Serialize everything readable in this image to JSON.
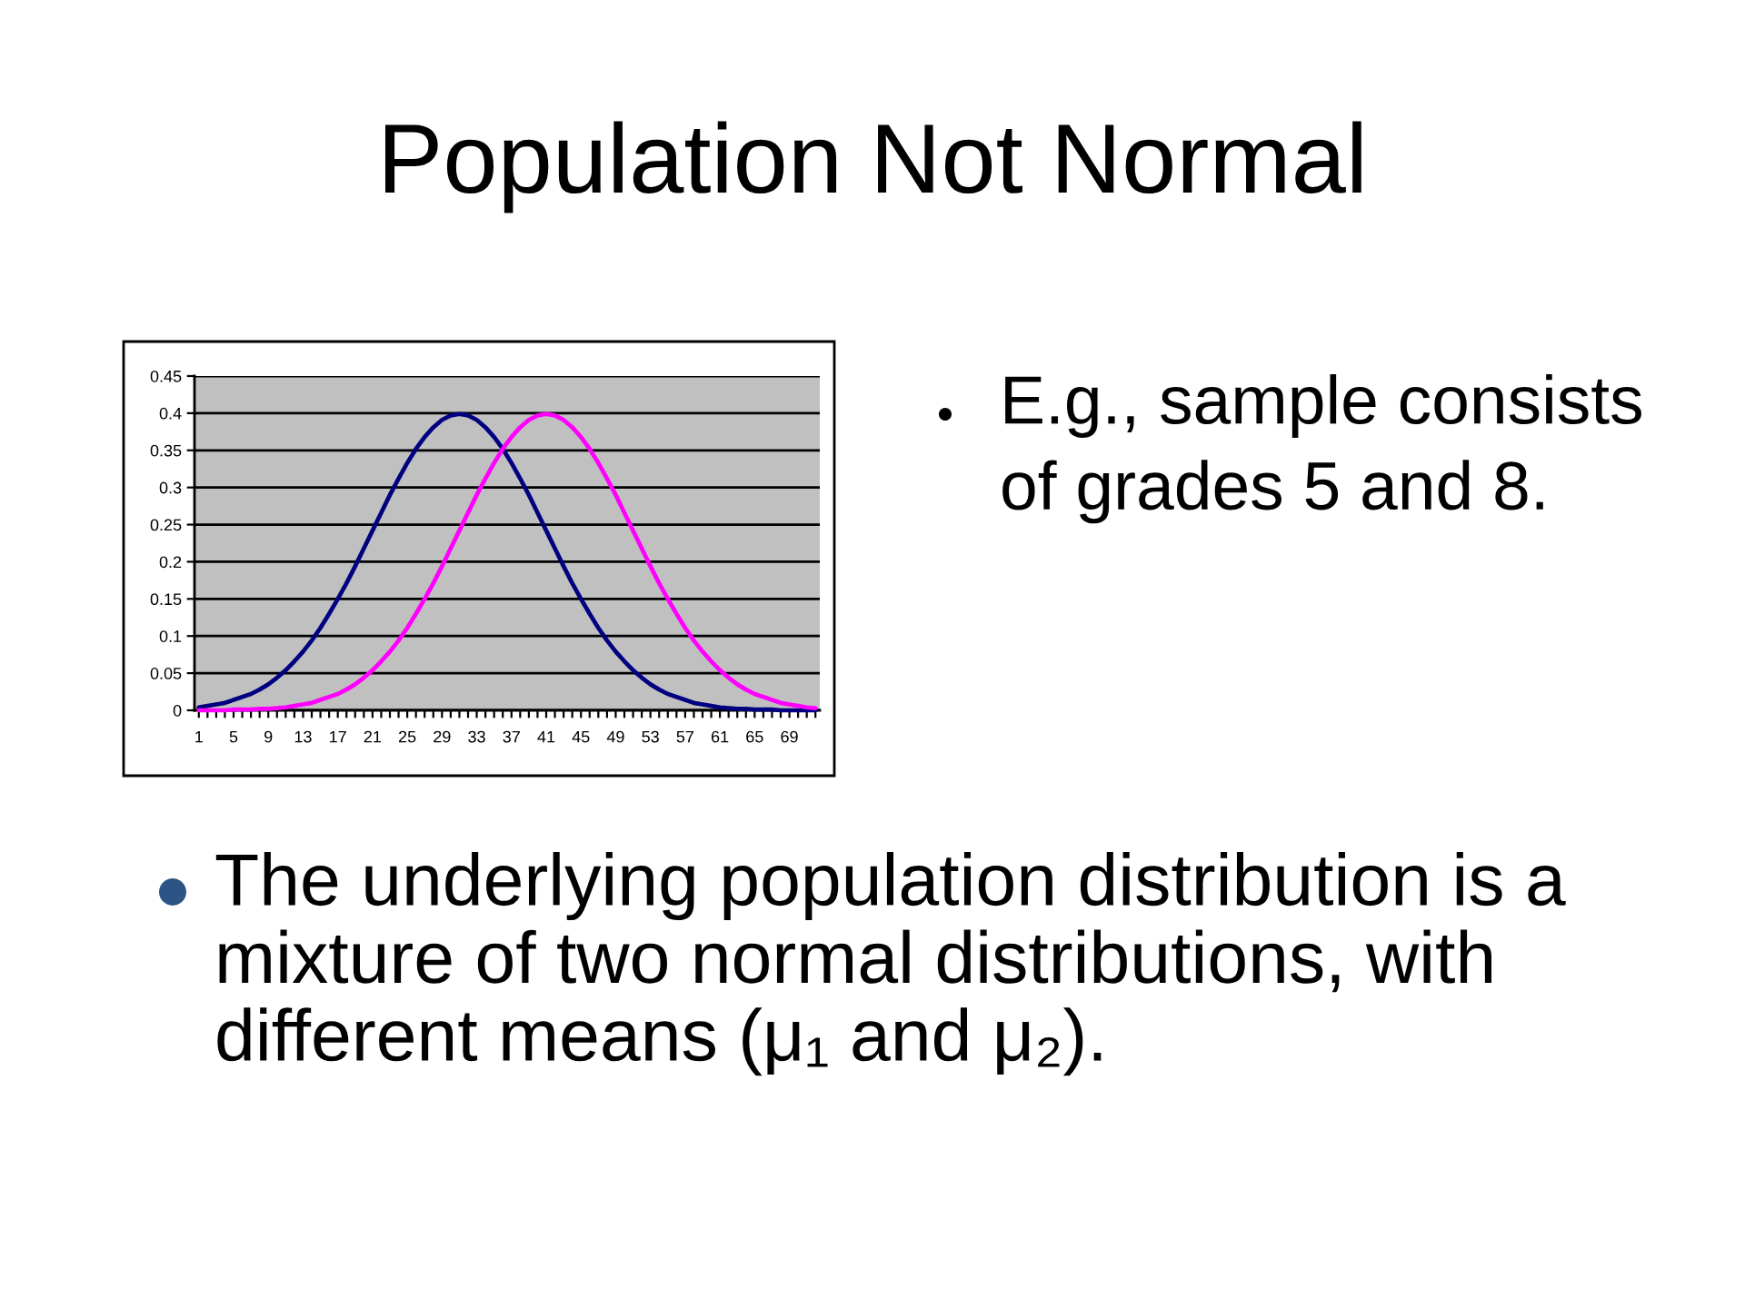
{
  "chart_data": {
    "type": "line",
    "title": "Population Not Normal",
    "annotations": [
      "E.g., sample consists of grades 5 and 8.",
      "The underlying population distribution is a mixture of two normal distributions, with different means (μ₁ and μ₂)."
    ],
    "categories": [
      "1",
      null,
      null,
      null,
      "5",
      null,
      null,
      null,
      "9",
      null,
      null,
      null,
      "13",
      null,
      null,
      null,
      "17",
      null,
      null,
      null,
      "21",
      null,
      null,
      null,
      "25",
      null,
      null,
      null,
      "29",
      null,
      null,
      null,
      "33",
      null,
      null,
      null,
      "37",
      null,
      null,
      null,
      "41",
      null,
      null,
      null,
      "45",
      null,
      null,
      null,
      "49",
      null,
      null,
      null,
      "53",
      null,
      null,
      null,
      "57",
      null,
      null,
      null,
      "61",
      null,
      null,
      null,
      "65",
      null,
      null,
      null,
      "69",
      null,
      null,
      null
    ],
    "series": [
      {
        "color": "#000080",
        "values": [
          0.004,
          0.006,
          0.008,
          0.01,
          0.014,
          0.018,
          0.022,
          0.028,
          0.035,
          0.044,
          0.054,
          0.066,
          0.079,
          0.094,
          0.111,
          0.13,
          0.15,
          0.171,
          0.194,
          0.218,
          0.242,
          0.266,
          0.29,
          0.312,
          0.333,
          0.352,
          0.368,
          0.381,
          0.391,
          0.397,
          0.399,
          0.397,
          0.391,
          0.381,
          0.368,
          0.352,
          0.333,
          0.312,
          0.29,
          0.266,
          0.242,
          0.218,
          0.194,
          0.171,
          0.15,
          0.13,
          0.111,
          0.094,
          0.079,
          0.066,
          0.054,
          0.044,
          0.035,
          0.028,
          0.022,
          0.018,
          0.014,
          0.01,
          0.008,
          0.006,
          0.004,
          0.003,
          0.002,
          0.002,
          0.001,
          0.001,
          0.001,
          0,
          0,
          0,
          0,
          0
        ]
      },
      {
        "color": "#ff00ff",
        "values": [
          0,
          0,
          0,
          0,
          0.001,
          0.001,
          0.001,
          0.002,
          0.002,
          0.003,
          0.004,
          0.006,
          0.008,
          0.01,
          0.014,
          0.018,
          0.022,
          0.028,
          0.035,
          0.044,
          0.054,
          0.066,
          0.079,
          0.094,
          0.111,
          0.13,
          0.15,
          0.171,
          0.194,
          0.218,
          0.242,
          0.266,
          0.29,
          0.312,
          0.333,
          0.352,
          0.368,
          0.381,
          0.391,
          0.397,
          0.399,
          0.397,
          0.391,
          0.381,
          0.368,
          0.352,
          0.333,
          0.312,
          0.29,
          0.266,
          0.242,
          0.218,
          0.194,
          0.171,
          0.15,
          0.13,
          0.111,
          0.094,
          0.079,
          0.066,
          0.054,
          0.044,
          0.035,
          0.028,
          0.022,
          0.018,
          0.014,
          0.01,
          0.008,
          0.006,
          0.004,
          0.003
        ]
      }
    ],
    "ylim": [
      0,
      0.45
    ],
    "yticks": [
      0,
      0.05,
      0.1,
      0.15,
      0.2,
      0.25,
      0.3,
      0.35,
      0.4,
      0.45
    ],
    "grid": "y"
  }
}
